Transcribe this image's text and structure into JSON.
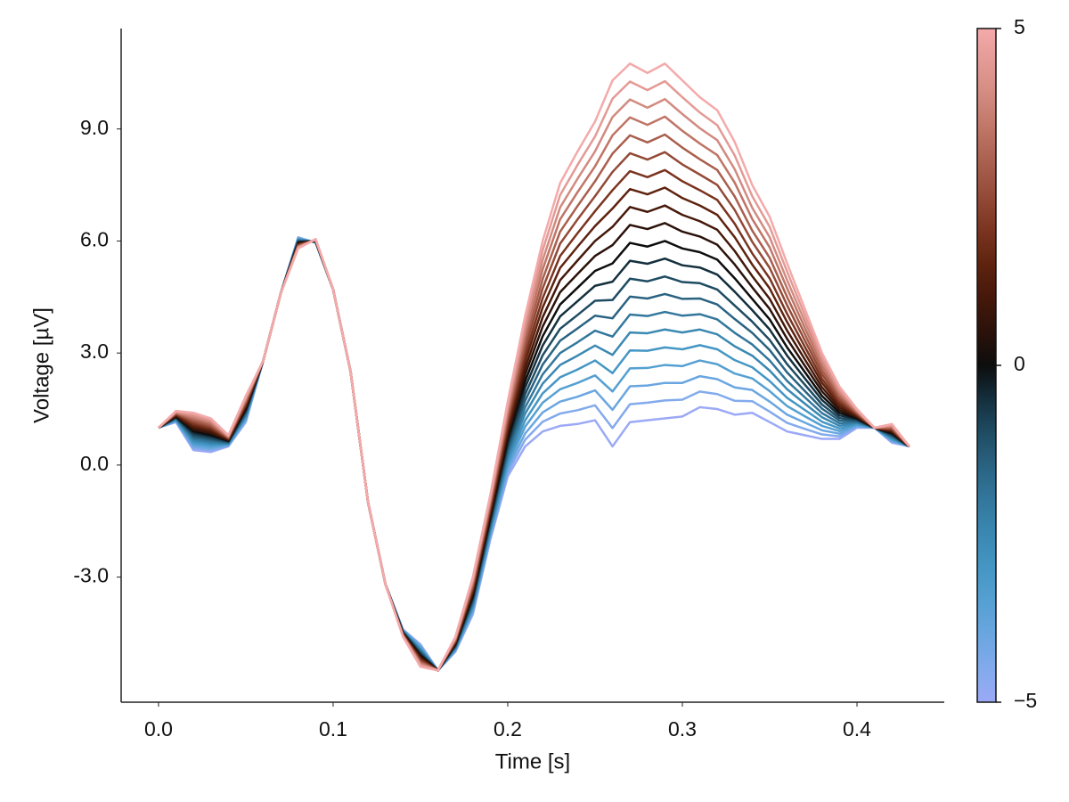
{
  "chart_data": {
    "type": "line",
    "x_label": "Time [s]",
    "y_label": "Voltage [µV]",
    "x": [
      0,
      0.01,
      0.02,
      0.03,
      0.04,
      0.05,
      0.06,
      0.07,
      0.08,
      0.09,
      0.1,
      0.11,
      0.12,
      0.13,
      0.14,
      0.15,
      0.16,
      0.17,
      0.18,
      0.19,
      0.2,
      0.21,
      0.22,
      0.23,
      0.24,
      0.25,
      0.26,
      0.27,
      0.28,
      0.29,
      0.3,
      0.31,
      0.32,
      0.33,
      0.34,
      0.35,
      0.36,
      0.37,
      0.38,
      0.39,
      0.4,
      0.41,
      0.42,
      0.43
    ],
    "xlim": [
      -0.0214,
      0.45
    ],
    "xticks": [
      {
        "value": 0,
        "label": "0.0"
      },
      0.1,
      0.2,
      0.3,
      0.4
    ],
    "ylim": [
      -6.35,
      11.69
    ],
    "yticks": [
      {
        "value": -3,
        "label": "-3.0"
      },
      {
        "value": 0,
        "label": "0.0"
      },
      {
        "value": 3,
        "label": "3.0"
      },
      {
        "value": 6,
        "label": "6.0"
      },
      {
        "value": 9,
        "label": "9.0"
      }
    ],
    "grid": false,
    "line_width": 2.5,
    "colorbar": {
      "lim": [
        -5,
        5
      ],
      "ticks": [
        {
          "value": -5,
          "label": "−5"
        },
        0,
        5
      ]
    },
    "series": [
      {
        "color": "#9ba9f6",
        "values": [
          1,
          1.15,
          0.4,
          0.35,
          0.5,
          1.15,
          2.8,
          4.6,
          6.1,
          5.95,
          4.7,
          2.5,
          -1,
          -3.2,
          -4.4,
          -4.8,
          -5.5,
          -5.0,
          -4.0,
          -2.0,
          -0.3,
          0.5,
          0.9,
          1.05,
          1.1,
          1.2,
          0.5,
          1.15,
          1.2,
          1.25,
          1.3,
          1.55,
          1.5,
          1.35,
          1.4,
          1.15,
          0.9,
          0.8,
          0.7,
          0.7,
          1.0,
          1.0,
          0.6,
          0.5
        ]
      },
      {
        "color": "#82aaec",
        "values": [
          1,
          1.17,
          0.45,
          0.4,
          0.52,
          1.19,
          2.8,
          4.6,
          6.09,
          5.96,
          4.7,
          2.5,
          -1,
          -3.2,
          -4.41,
          -4.83,
          -5.5,
          -4.98,
          -3.95,
          -1.94,
          -0.2,
          0.68,
          1.16,
          1.38,
          1.47,
          1.6,
          0.99,
          1.63,
          1.67,
          1.73,
          1.75,
          1.97,
          1.9,
          1.72,
          1.71,
          1.43,
          1.13,
          0.97,
          0.82,
          0.77,
          1.03,
          1,
          0.63,
          0.5
        ]
      },
      {
        "color": "#6aa6e0",
        "values": [
          1,
          1.18,
          0.5,
          0.44,
          0.53,
          1.22,
          2.8,
          4.6,
          6.07,
          5.96,
          4.7,
          2.5,
          -1,
          -3.2,
          -4.42,
          -4.86,
          -5.5,
          -4.96,
          -3.9,
          -1.88,
          -0.1,
          0.85,
          1.41,
          1.7,
          1.83,
          2.0,
          1.48,
          2.11,
          2.13,
          2.2,
          2.2,
          2.38,
          2.3,
          2.08,
          2.01,
          1.7,
          1.35,
          1.14,
          0.93,
          0.84,
          1.05,
          1,
          0.65,
          0.5
        ]
      },
      {
        "color": "#55a0d2",
        "values": [
          1,
          1.2,
          0.55,
          0.49,
          0.55,
          1.26,
          2.8,
          4.6,
          6.06,
          5.97,
          4.7,
          2.5,
          -1,
          -3.2,
          -4.43,
          -4.89,
          -5.5,
          -4.94,
          -3.85,
          -1.82,
          0,
          1.03,
          1.67,
          2.03,
          2.2,
          2.4,
          1.97,
          2.59,
          2.6,
          2.68,
          2.65,
          2.8,
          2.7,
          2.45,
          2.32,
          1.98,
          1.58,
          1.31,
          1.05,
          0.91,
          1.08,
          1,
          0.68,
          0.5
        ]
      },
      {
        "color": "#4596c4",
        "values": [
          1,
          1.21,
          0.6,
          0.53,
          0.56,
          1.29,
          2.8,
          4.6,
          6.04,
          5.97,
          4.7,
          2.5,
          -1,
          -3.2,
          -4.44,
          -4.92,
          -5.5,
          -4.92,
          -3.8,
          -1.76,
          0.1,
          1.2,
          1.92,
          2.35,
          2.56,
          2.8,
          2.46,
          3.07,
          3.06,
          3.15,
          3.1,
          3.21,
          3.1,
          2.81,
          2.62,
          2.25,
          1.8,
          1.48,
          1.16,
          0.98,
          1.1,
          1,
          0.7,
          0.5
        ]
      },
      {
        "color": "#3a88b2",
        "values": [
          1,
          1.23,
          0.65,
          0.58,
          0.58,
          1.33,
          2.8,
          4.6,
          6.03,
          5.98,
          4.7,
          2.5,
          -1,
          -3.2,
          -4.45,
          -4.95,
          -5.5,
          -4.9,
          -3.75,
          -1.7,
          0.2,
          1.38,
          2.18,
          2.68,
          2.93,
          3.2,
          2.95,
          3.55,
          3.53,
          3.63,
          3.55,
          3.63,
          3.5,
          3.18,
          2.93,
          2.53,
          2.03,
          1.65,
          1.28,
          1.05,
          1.13,
          1,
          0.73,
          0.5
        ]
      },
      {
        "color": "#33779c",
        "values": [
          1,
          1.24,
          0.7,
          0.62,
          0.59,
          1.36,
          2.8,
          4.6,
          6.01,
          5.98,
          4.7,
          2.5,
          -1,
          -3.2,
          -4.46,
          -4.98,
          -5.5,
          -4.88,
          -3.7,
          -1.64,
          0.3,
          1.55,
          2.43,
          3.0,
          3.29,
          3.6,
          3.44,
          4.03,
          3.99,
          4.1,
          4.0,
          4.04,
          3.9,
          3.54,
          3.23,
          2.8,
          2.25,
          1.82,
          1.39,
          1.12,
          1.15,
          1,
          0.75,
          0.5
        ]
      },
      {
        "color": "#2a6382",
        "values": [
          1,
          1.26,
          0.75,
          0.67,
          0.61,
          1.4,
          2.8,
          4.6,
          6.0,
          5.99,
          4.7,
          2.5,
          -1,
          -3.2,
          -4.47,
          -5.01,
          -5.5,
          -4.86,
          -3.65,
          -1.58,
          0.4,
          1.73,
          2.69,
          3.33,
          3.66,
          4.0,
          3.93,
          4.51,
          4.46,
          4.58,
          4.45,
          4.46,
          4.3,
          3.91,
          3.54,
          3.08,
          2.48,
          1.99,
          1.51,
          1.19,
          1.18,
          1,
          0.78,
          0.5
        ]
      },
      {
        "color": "#1f4c63",
        "values": [
          1,
          1.27,
          0.8,
          0.71,
          0.62,
          1.43,
          2.8,
          4.6,
          5.98,
          5.99,
          4.7,
          2.5,
          -1,
          -3.2,
          -4.48,
          -5.04,
          -5.5,
          -4.84,
          -3.6,
          -1.52,
          0.5,
          1.9,
          2.94,
          3.65,
          4.02,
          4.4,
          4.42,
          4.99,
          4.92,
          5.05,
          4.9,
          4.87,
          4.7,
          4.27,
          3.84,
          3.35,
          2.7,
          2.16,
          1.62,
          1.26,
          1.2,
          1,
          0.8,
          0.5
        ]
      },
      {
        "color": "#142f3d",
        "values": [
          1,
          1.29,
          0.85,
          0.76,
          0.64,
          1.47,
          2.8,
          4.6,
          5.97,
          6.0,
          4.7,
          2.5,
          -1,
          -3.2,
          -4.49,
          -5.07,
          -5.5,
          -4.82,
          -3.55,
          -1.46,
          0.6,
          2.08,
          3.2,
          3.98,
          4.39,
          4.8,
          4.91,
          5.47,
          5.39,
          5.53,
          5.35,
          5.29,
          5.1,
          4.64,
          4.15,
          3.63,
          2.93,
          2.33,
          1.74,
          1.33,
          1.23,
          1,
          0.83,
          0.5
        ]
      },
      {
        "color": "#0d0d0d",
        "values": [
          1,
          1.3,
          0.9,
          0.8,
          0.65,
          1.5,
          2.8,
          4.6,
          5.95,
          6.0,
          4.7,
          2.5,
          -1,
          -3.2,
          -4.5,
          -5.1,
          -5.5,
          -4.8,
          -3.5,
          -1.4,
          0.7,
          2.25,
          3.45,
          4.3,
          4.75,
          5.2,
          5.4,
          5.95,
          5.85,
          6.0,
          5.8,
          5.7,
          5.5,
          5.0,
          4.45,
          3.9,
          3.15,
          2.5,
          1.85,
          1.4,
          1.25,
          1,
          0.85,
          0.5
        ]
      },
      {
        "color": "#2b120a",
        "values": [
          1,
          1.32,
          0.95,
          0.85,
          0.67,
          1.54,
          2.8,
          4.6,
          5.94,
          6.01,
          4.7,
          2.5,
          -1,
          -3.2,
          -4.51,
          -5.13,
          -5.5,
          -4.78,
          -3.45,
          -1.34,
          0.8,
          2.43,
          3.71,
          4.63,
          5.12,
          5.6,
          5.89,
          6.43,
          6.32,
          6.48,
          6.25,
          6.12,
          5.9,
          5.37,
          4.76,
          4.18,
          3.38,
          2.67,
          1.97,
          1.47,
          1.28,
          1,
          0.88,
          0.5
        ]
      },
      {
        "color": "#45180a",
        "values": [
          1,
          1.33,
          1.0,
          0.89,
          0.68,
          1.57,
          2.8,
          4.6,
          5.92,
          6.01,
          4.7,
          2.5,
          -1,
          -3.2,
          -4.52,
          -5.16,
          -5.5,
          -4.76,
          -3.4,
          -1.28,
          0.9,
          2.6,
          3.96,
          4.95,
          5.48,
          6.0,
          6.38,
          6.91,
          6.78,
          6.95,
          6.7,
          6.53,
          6.3,
          5.73,
          5.06,
          4.45,
          3.6,
          2.84,
          2.08,
          1.54,
          1.3,
          1,
          0.9,
          0.5
        ]
      },
      {
        "color": "#5e230f",
        "values": [
          1,
          1.35,
          1.05,
          0.94,
          0.7,
          1.61,
          2.8,
          4.6,
          5.91,
          6.02,
          4.7,
          2.5,
          -1,
          -3.2,
          -4.53,
          -5.19,
          -5.5,
          -4.74,
          -3.35,
          -1.22,
          1.0,
          2.78,
          4.22,
          5.28,
          5.85,
          6.4,
          6.87,
          7.39,
          7.25,
          7.43,
          7.15,
          6.95,
          6.7,
          6.1,
          5.37,
          4.73,
          3.83,
          3.01,
          2.2,
          1.61,
          1.33,
          1,
          0.93,
          0.5
        ]
      },
      {
        "color": "#7a3420",
        "values": [
          1,
          1.36,
          1.1,
          0.98,
          0.71,
          1.64,
          2.8,
          4.6,
          5.89,
          6.02,
          4.7,
          2.5,
          -1,
          -3.2,
          -4.54,
          -5.22,
          -5.5,
          -4.72,
          -3.3,
          -1.16,
          1.1,
          2.95,
          4.47,
          5.6,
          6.21,
          6.8,
          7.36,
          7.87,
          7.71,
          7.9,
          7.6,
          7.36,
          7.1,
          6.46,
          5.67,
          5.0,
          4.05,
          3.18,
          2.31,
          1.68,
          1.35,
          1,
          0.95,
          0.5
        ]
      },
      {
        "color": "#934a37",
        "values": [
          1,
          1.38,
          1.15,
          1.03,
          0.73,
          1.68,
          2.8,
          4.6,
          5.88,
          6.03,
          4.7,
          2.5,
          -1,
          -3.2,
          -4.55,
          -5.25,
          -5.5,
          -4.7,
          -3.25,
          -1.1,
          1.2,
          3.13,
          4.73,
          5.93,
          6.58,
          7.2,
          7.85,
          8.35,
          8.18,
          8.38,
          8.05,
          7.78,
          7.5,
          6.83,
          5.98,
          5.28,
          4.28,
          3.35,
          2.43,
          1.75,
          1.38,
          1,
          0.98,
          0.5
        ]
      },
      {
        "color": "#a95f4e",
        "values": [
          1,
          1.39,
          1.2,
          1.07,
          0.74,
          1.71,
          2.8,
          4.6,
          5.86,
          6.03,
          4.7,
          2.5,
          -1,
          -3.2,
          -4.56,
          -5.28,
          -5.5,
          -4.68,
          -3.2,
          -1.04,
          1.3,
          3.3,
          4.98,
          6.25,
          6.94,
          7.6,
          8.34,
          8.83,
          8.64,
          8.85,
          8.5,
          8.19,
          7.9,
          7.19,
          6.28,
          5.55,
          4.5,
          3.52,
          2.54,
          1.82,
          1.4,
          1,
          1.0,
          0.5
        ]
      },
      {
        "color": "#bf7566",
        "values": [
          1,
          1.41,
          1.25,
          1.12,
          0.76,
          1.75,
          2.8,
          4.6,
          5.85,
          6.04,
          4.7,
          2.5,
          -1,
          -3.2,
          -4.57,
          -5.31,
          -5.5,
          -4.66,
          -3.15,
          -0.98,
          1.4,
          3.48,
          5.24,
          6.58,
          7.31,
          8.0,
          8.83,
          9.31,
          9.11,
          9.33,
          8.95,
          8.61,
          8.3,
          7.56,
          6.59,
          5.83,
          4.73,
          3.69,
          2.66,
          1.89,
          1.43,
          1,
          1.03,
          0.5
        ]
      },
      {
        "color": "#d28a80",
        "values": [
          1,
          1.42,
          1.3,
          1.16,
          0.77,
          1.78,
          2.8,
          4.6,
          5.83,
          6.04,
          4.7,
          2.5,
          -1,
          -3.2,
          -4.58,
          -5.34,
          -5.5,
          -4.64,
          -3.1,
          -0.92,
          1.5,
          3.65,
          5.49,
          6.9,
          7.67,
          8.4,
          9.32,
          9.79,
          9.57,
          9.8,
          9.4,
          9.02,
          8.7,
          7.92,
          6.89,
          6.1,
          4.95,
          3.86,
          2.77,
          1.96,
          1.45,
          1,
          1.05,
          0.5
        ]
      },
      {
        "color": "#e39a95",
        "values": [
          1,
          1.44,
          1.35,
          1.21,
          0.79,
          1.82,
          2.8,
          4.6,
          5.82,
          6.05,
          4.7,
          2.5,
          -1,
          -3.2,
          -4.59,
          -5.37,
          -5.5,
          -4.62,
          -3.05,
          -0.86,
          1.6,
          3.83,
          5.75,
          7.23,
          8.04,
          8.8,
          9.81,
          10.27,
          10.04,
          10.28,
          9.85,
          9.44,
          9.1,
          8.29,
          7.2,
          6.38,
          5.18,
          4.03,
          2.89,
          2.03,
          1.48,
          1,
          1.08,
          0.5
        ]
      },
      {
        "color": "#f4aaaa",
        "values": [
          1,
          1.45,
          1.4,
          1.25,
          0.8,
          1.85,
          2.8,
          4.6,
          5.8,
          6.05,
          4.7,
          2.5,
          -1,
          -3.2,
          -4.6,
          -5.4,
          -5.5,
          -4.6,
          -3.0,
          -0.8,
          1.7,
          4.0,
          6.0,
          7.55,
          8.4,
          9.2,
          10.3,
          10.75,
          10.5,
          10.75,
          10.3,
          9.85,
          9.5,
          8.65,
          7.5,
          6.65,
          5.4,
          4.2,
          3.0,
          2.1,
          1.5,
          1,
          1.1,
          0.5
        ]
      }
    ]
  }
}
